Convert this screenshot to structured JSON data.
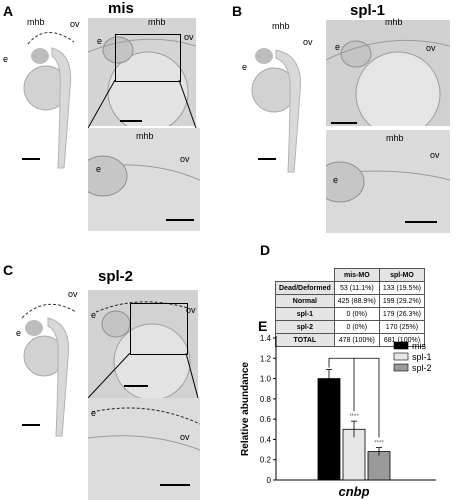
{
  "panels": {
    "A": {
      "letter": "A",
      "title": "mis",
      "labels": {
        "mhb": "mhb",
        "ov": "ov",
        "e": "e"
      }
    },
    "B": {
      "letter": "B",
      "title": "spl-1",
      "labels": {
        "mhb": "mhb",
        "ov": "ov",
        "e": "e"
      }
    },
    "C": {
      "letter": "C",
      "title": "spl-2",
      "labels": {
        "ov": "ov",
        "e": "e"
      }
    },
    "D": {
      "letter": "D"
    },
    "E": {
      "letter": "E"
    }
  },
  "table": {
    "headers": [
      "",
      "mis-MO",
      "spl-MO"
    ],
    "rows": [
      [
        "Dead/Deformed",
        "53 (11.1%)",
        "133 (19.5%)"
      ],
      [
        "Normal",
        "425 (88.9%)",
        "199 (29.2%)"
      ],
      [
        "spl-1",
        "0 (0%)",
        "179 (26.3%)"
      ],
      [
        "spl-2",
        "0 (0%)",
        "170 (25%)"
      ],
      [
        "TOTAL",
        "478 (100%)",
        "681 (100%)"
      ]
    ]
  },
  "chart_data": {
    "type": "bar",
    "categories": [
      "mis",
      "spl-1",
      "spl-2"
    ],
    "values": [
      1.0,
      0.5,
      0.28
    ],
    "errors": [
      0.09,
      0.08,
      0.04
    ],
    "significance": [
      "",
      "****",
      "****"
    ],
    "colors": [
      "#000000",
      "#e6e6e6",
      "#9a9a9a"
    ],
    "title": "",
    "xlabel": "cnbp",
    "ylabel": "Relative abundance",
    "ylim": [
      0,
      1.4
    ],
    "yticks": [
      "0",
      "0.2",
      "0.4",
      "0.6",
      "0.8",
      "1.0",
      "1.2",
      "1.4"
    ],
    "legend": [
      "mis",
      "spl-1",
      "spl-2"
    ],
    "legend_position": "top-right"
  }
}
